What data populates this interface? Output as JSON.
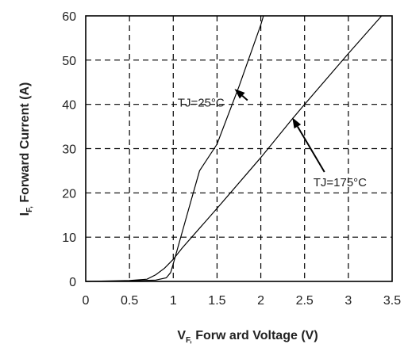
{
  "chart_data": {
    "type": "line",
    "title": "",
    "xlabel": {
      "main": "V",
      "sub": "F,",
      "rest": " Forw ard Voltage (V)"
    },
    "ylabel": {
      "main": "I",
      "sub": "F,",
      "rest": " Forward Current (A)"
    },
    "xlim": [
      0,
      3.5
    ],
    "ylim": [
      0,
      60
    ],
    "xticks": [
      "0",
      "0.5",
      "1",
      "1.5",
      "2",
      "2.5",
      "3",
      "3.5"
    ],
    "yticks": [
      "0",
      "10",
      "20",
      "30",
      "40",
      "50",
      "60"
    ],
    "grid": true,
    "series": [
      {
        "name": "TJ=25°C",
        "points": [
          [
            0,
            0
          ],
          [
            0.5,
            0.1
          ],
          [
            0.8,
            0.3
          ],
          [
            0.92,
            0.8
          ],
          [
            0.97,
            2
          ],
          [
            1.0,
            4
          ],
          [
            1.1,
            11
          ],
          [
            1.2,
            18
          ],
          [
            1.3,
            25
          ],
          [
            1.5,
            31
          ],
          [
            1.75,
            44
          ],
          [
            2.0,
            58
          ],
          [
            2.03,
            60
          ]
        ]
      },
      {
        "name": "TJ=175°C",
        "points": [
          [
            0,
            0
          ],
          [
            0.5,
            0.2
          ],
          [
            0.7,
            0.5
          ],
          [
            0.8,
            1.5
          ],
          [
            0.9,
            3
          ],
          [
            1.0,
            5
          ],
          [
            1.1,
            7.5
          ],
          [
            1.5,
            16.5
          ],
          [
            2.0,
            28
          ],
          [
            2.35,
            36.5
          ],
          [
            2.5,
            40
          ],
          [
            3.0,
            51.5
          ],
          [
            3.38,
            60
          ]
        ]
      }
    ],
    "annotations": [
      {
        "text": "TJ=25°C",
        "x": 1.05,
        "y": 39.5,
        "arrow_to": [
          1.7,
          43.5
        ]
      },
      {
        "text": "TJ=175°C",
        "x": 2.6,
        "y": 21.5,
        "arrow_to": [
          2.36,
          37
        ]
      }
    ]
  }
}
